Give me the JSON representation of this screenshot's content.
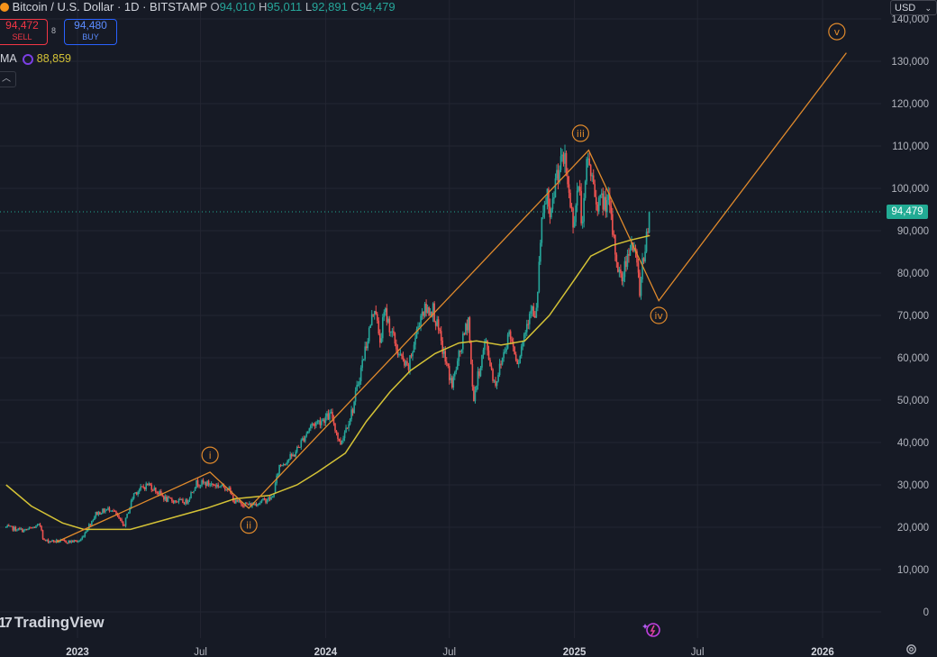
{
  "header": {
    "symbol_text": "Bitcoin / U.S. Dollar · 1D · BITSTAMP",
    "o_label": "O",
    "o_value": "94,010",
    "h_label": "H",
    "h_value": "95,011",
    "l_label": "L",
    "l_value": "92,891",
    "c_label": "C",
    "c_value": "94,479"
  },
  "trade": {
    "sell_price": "94,472",
    "sell_label": "SELL",
    "spread": "8",
    "buy_price": "94,480",
    "buy_label": "BUY"
  },
  "indicator": {
    "name": "MA",
    "value": "88,859"
  },
  "currency": "USD",
  "last_price": "94,479",
  "brand": "TradingView",
  "colors": {
    "background": "#161a25",
    "grid": "#232632",
    "up_candle": "#26a69a",
    "down_candle": "#ef5350",
    "ma_line": "#d4c236",
    "wave_line": "#e08a2c",
    "last_price": "#22ab94"
  },
  "chart_data": {
    "type": "candlestick",
    "symbol": "Bitcoin / U.S. Dollar",
    "interval": "1D",
    "exchange": "BITSTAMP",
    "y_axis_ticks": [
      0,
      10000,
      20000,
      30000,
      40000,
      50000,
      60000,
      70000,
      80000,
      90000,
      100000,
      110000,
      120000,
      130000,
      140000
    ],
    "y_axis_labels": [
      "0",
      "10,000",
      "20,000",
      "30,000",
      "40,000",
      "50,000",
      "60,000",
      "70,000",
      "80,000",
      "90,000",
      "100,000",
      "110,000",
      "120,000",
      "130,000",
      "140,000"
    ],
    "ylim": [
      0,
      142000
    ],
    "x_ticks": [
      {
        "label": "2023",
        "date": "2023-01-01",
        "bold": true
      },
      {
        "label": "Jul",
        "date": "2023-07-01",
        "bold": false
      },
      {
        "label": "2024",
        "date": "2024-01-01",
        "bold": true
      },
      {
        "label": "Jul",
        "date": "2024-07-01",
        "bold": false
      },
      {
        "label": "2025",
        "date": "2025-01-01",
        "bold": true
      },
      {
        "label": "Jul",
        "date": "2025-07-01",
        "bold": false
      },
      {
        "label": "2026",
        "date": "2026-01-01",
        "bold": true
      }
    ],
    "price_path": [
      [
        "2022-09-18",
        20000
      ],
      [
        "2022-10-15",
        19200
      ],
      [
        "2022-11-08",
        20500
      ],
      [
        "2022-11-12",
        16800
      ],
      [
        "2022-12-20",
        16600
      ],
      [
        "2023-01-05",
        16800
      ],
      [
        "2023-01-28",
        23200
      ],
      [
        "2023-02-20",
        24500
      ],
      [
        "2023-03-10",
        20200
      ],
      [
        "2023-03-25",
        28000
      ],
      [
        "2023-04-15",
        30200
      ],
      [
        "2023-05-12",
        26500
      ],
      [
        "2023-06-10",
        25900
      ],
      [
        "2023-06-25",
        30500
      ],
      [
        "2023-07-15",
        30200
      ],
      [
        "2023-08-10",
        29400
      ],
      [
        "2023-08-20",
        26000
      ],
      [
        "2023-09-12",
        25200
      ],
      [
        "2023-10-15",
        27000
      ],
      [
        "2023-10-25",
        34500
      ],
      [
        "2023-11-15",
        37000
      ],
      [
        "2023-12-10",
        44000
      ],
      [
        "2024-01-10",
        46500
      ],
      [
        "2024-01-22",
        39500
      ],
      [
        "2024-02-10",
        48000
      ],
      [
        "2024-02-28",
        62000
      ],
      [
        "2024-03-14",
        73000
      ],
      [
        "2024-03-20",
        63000
      ],
      [
        "2024-03-28",
        71000
      ],
      [
        "2024-04-17",
        61000
      ],
      [
        "2024-05-01",
        57000
      ],
      [
        "2024-05-21",
        71000
      ],
      [
        "2024-06-07",
        71500
      ],
      [
        "2024-06-24",
        60000
      ],
      [
        "2024-07-05",
        53500
      ],
      [
        "2024-07-29",
        69500
      ],
      [
        "2024-08-05",
        50000
      ],
      [
        "2024-08-23",
        64000
      ],
      [
        "2024-09-06",
        53500
      ],
      [
        "2024-09-27",
        66000
      ],
      [
        "2024-10-10",
        59000
      ],
      [
        "2024-10-29",
        72500
      ],
      [
        "2024-11-05",
        68000
      ],
      [
        "2024-11-13",
        90000
      ],
      [
        "2024-11-22",
        99000
      ],
      [
        "2024-11-26",
        91000
      ],
      [
        "2024-12-05",
        103000
      ],
      [
        "2024-12-17",
        107000
      ],
      [
        "2024-12-30",
        92000
      ],
      [
        "2025-01-07",
        101000
      ],
      [
        "2025-01-13",
        90500
      ],
      [
        "2025-01-20",
        108000
      ],
      [
        "2025-02-02",
        97000
      ],
      [
        "2025-02-20",
        96500
      ],
      [
        "2025-03-04",
        83000
      ],
      [
        "2025-03-11",
        78000
      ],
      [
        "2025-03-25",
        88000
      ],
      [
        "2025-04-03",
        82000
      ],
      [
        "2025-04-08",
        75000
      ],
      [
        "2025-04-11",
        84000
      ],
      [
        "2025-04-15",
        85000
      ],
      [
        "2025-04-22",
        94479
      ]
    ],
    "moving_average": [
      [
        "2022-09-18",
        30000
      ],
      [
        "2022-10-25",
        25000
      ],
      [
        "2022-12-10",
        21000
      ],
      [
        "2023-01-10",
        19500
      ],
      [
        "2023-03-20",
        19500
      ],
      [
        "2023-05-15",
        22000
      ],
      [
        "2023-07-10",
        24500
      ],
      [
        "2023-08-20",
        26700
      ],
      [
        "2023-10-10",
        27500
      ],
      [
        "2023-11-20",
        30000
      ],
      [
        "2023-12-20",
        33000
      ],
      [
        "2024-01-30",
        37500
      ],
      [
        "2024-03-01",
        45000
      ],
      [
        "2024-04-05",
        52000
      ],
      [
        "2024-05-05",
        57000
      ],
      [
        "2024-06-10",
        61000
      ],
      [
        "2024-07-15",
        63500
      ],
      [
        "2024-08-10",
        64000
      ],
      [
        "2024-09-15",
        63000
      ],
      [
        "2024-10-20",
        64000
      ],
      [
        "2024-11-25",
        70000
      ],
      [
        "2024-12-30",
        78000
      ],
      [
        "2025-01-25",
        84000
      ],
      [
        "2025-02-25",
        86500
      ],
      [
        "2025-03-25",
        87800
      ],
      [
        "2025-04-22",
        88859
      ]
    ],
    "ma_value": 88859,
    "wave_count": {
      "points": [
        [
          "2022-12-01",
          16500
        ],
        [
          "2023-07-15",
          33000
        ],
        [
          "2023-09-10",
          24500
        ],
        [
          "2025-01-22",
          109000
        ],
        [
          "2025-05-05",
          73500
        ],
        [
          "2026-02-05",
          132000
        ]
      ],
      "labels": [
        {
          "text": "i",
          "date": "2023-07-15",
          "price": 37000
        },
        {
          "text": "ii",
          "date": "2023-09-10",
          "price": 20500
        },
        {
          "text": "iii",
          "date": "2025-01-10",
          "price": 113000
        },
        {
          "text": "iv",
          "date": "2025-05-05",
          "price": 70000
        },
        {
          "text": "v",
          "date": "2026-01-22",
          "price": 137000
        }
      ]
    },
    "last_price": 94479
  }
}
